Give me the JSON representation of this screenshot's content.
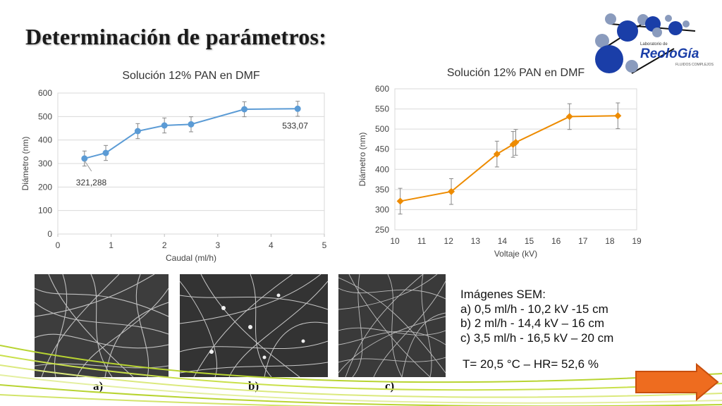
{
  "slide": {
    "title": "Determinación de parámetros:",
    "sem_heading": "Imágenes SEM:",
    "sem_items": [
      "a) 0,5 ml/h - 10,2 kV -15 cm",
      "b) 2 ml/h - 14,4 kV – 16 cm",
      "c) 3,5 ml/h - 16,5 kV – 20 cm"
    ],
    "conditions": "T= 20,5  °C – HR= 52,6 %",
    "sem_labels": [
      "a)",
      "b)",
      "c)"
    ],
    "logo": {
      "small_text": "Laboratorio de",
      "brand": "ReoloGía",
      "subtitle": "FLUIDOS COMPLEJOS"
    },
    "next_button_icon": "right-arrow-icon"
  },
  "chart_data": [
    {
      "type": "line",
      "title": "Solución 12% PAN en DMF",
      "xlabel": "Caudal (ml/h)",
      "ylabel": "Diámetro (nm)",
      "xlim": [
        0,
        5
      ],
      "ylim": [
        0,
        600
      ],
      "xticks": [
        "0",
        "1",
        "2",
        "3",
        "4",
        "5"
      ],
      "yticks": [
        "0",
        "100",
        "200",
        "300",
        "400",
        "500",
        "600"
      ],
      "series": [
        {
          "color": "#5b9bd5",
          "x": [
            0.5,
            0.9,
            1.5,
            2.0,
            2.5,
            3.5,
            4.5
          ],
          "y": [
            321.288,
            345,
            438,
            462,
            467,
            531,
            533.07
          ],
          "error": [
            32,
            32,
            32,
            32,
            32,
            32,
            32
          ]
        }
      ],
      "annotations": [
        {
          "text": "321,288",
          "x": 0.5,
          "y": 321.288
        },
        {
          "text": "533,07",
          "x": 4.5,
          "y": 533.07
        }
      ],
      "grid": true
    },
    {
      "type": "line",
      "title": "Solución 12% PAN en DMF",
      "xlabel": "Voltaje (kV)",
      "ylabel": "Diámetro (nm)",
      "xlim": [
        10,
        19
      ],
      "ylim": [
        250,
        600
      ],
      "xticks": [
        "10",
        "11",
        "12",
        "13",
        "14",
        "15",
        "16",
        "17",
        "18",
        "19"
      ],
      "yticks": [
        "250",
        "300",
        "350",
        "400",
        "450",
        "500",
        "550",
        "600"
      ],
      "series": [
        {
          "color": "#ed8b00",
          "x": [
            10.2,
            12.1,
            13.8,
            14.4,
            14.5,
            16.5,
            18.3
          ],
          "y": [
            321,
            345,
            438,
            462,
            467,
            531,
            533
          ],
          "error": [
            32,
            32,
            32,
            32,
            32,
            32,
            32
          ]
        }
      ],
      "grid": true
    }
  ]
}
